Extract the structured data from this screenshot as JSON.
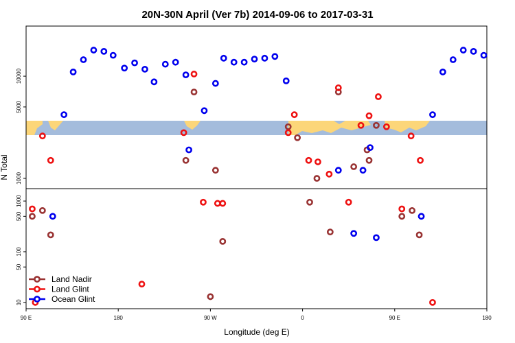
{
  "chart_data": {
    "type": "scatter",
    "title": "20N-30N April (Ver 7b)   2014-09-06 to 2017-03-31",
    "xlabel": "Longitude (deg E)",
    "ylabel": "N Total",
    "x_ticks": [
      {
        "value": 90,
        "label": "90 E"
      },
      {
        "value": 180,
        "label": "180"
      },
      {
        "value": 270,
        "label": "90 W"
      },
      {
        "value": 360,
        "label": "0"
      },
      {
        "value": 450,
        "label": "90 E"
      },
      {
        "value": 540,
        "label": "180"
      }
    ],
    "xlim": [
      90,
      540
    ],
    "upper_panel": {
      "scale": "log",
      "ylim": [
        1000,
        30000
      ],
      "y_ticks": [
        {
          "value": 1000,
          "label": "1000"
        },
        {
          "value": 5000,
          "label": "5000"
        },
        {
          "value": 10000,
          "label": "10000"
        }
      ]
    },
    "lower_panel": {
      "scale": "log",
      "ylim": [
        8,
        1600
      ],
      "y_ticks": [
        {
          "value": 10,
          "label": "10"
        },
        {
          "value": 50,
          "label": "50"
        },
        {
          "value": 100,
          "label": "100"
        },
        {
          "value": 500,
          "label": "500"
        },
        {
          "value": 1000,
          "label": "1000"
        }
      ]
    },
    "map_band": {
      "land_color": "#fcd679",
      "ocean_color": "#a4bcdc"
    },
    "series": [
      {
        "name": "Land Nadir",
        "color": "#993333",
        "points": [
          [
            96,
            500
          ],
          [
            106,
            650
          ],
          [
            114,
            215
          ],
          [
            246,
            1500
          ],
          [
            254,
            7000
          ],
          [
            270,
            13
          ],
          [
            275,
            1200
          ],
          [
            282,
            160
          ],
          [
            346,
            3200
          ],
          [
            355,
            2500
          ],
          [
            367,
            950
          ],
          [
            374,
            1000
          ],
          [
            387,
            245
          ],
          [
            395,
            7000
          ],
          [
            410,
            1300
          ],
          [
            423,
            1900
          ],
          [
            425,
            1500
          ],
          [
            432,
            3300
          ],
          [
            457,
            500
          ],
          [
            467,
            650
          ],
          [
            474,
            215
          ]
        ]
      },
      {
        "name": "Land Glint",
        "color": "#ee1111",
        "points": [
          [
            96,
            700
          ],
          [
            106,
            2600
          ],
          [
            114,
            1500
          ],
          [
            99,
            10
          ],
          [
            203,
            23
          ],
          [
            244,
            2800
          ],
          [
            254,
            10500
          ],
          [
            263,
            950
          ],
          [
            277,
            900
          ],
          [
            282,
            900
          ],
          [
            346,
            2800
          ],
          [
            352,
            4200
          ],
          [
            366,
            1500
          ],
          [
            375,
            1450
          ],
          [
            386,
            1100
          ],
          [
            395,
            7700
          ],
          [
            405,
            950
          ],
          [
            417,
            3300
          ],
          [
            425,
            4100
          ],
          [
            434,
            6300
          ],
          [
            442,
            3200
          ],
          [
            457,
            700
          ],
          [
            466,
            2600
          ],
          [
            475,
            1500
          ],
          [
            487,
            10
          ]
        ]
      },
      {
        "name": "Ocean Glint",
        "color": "#0000ee",
        "points": [
          [
            116,
            500
          ],
          [
            127,
            4200
          ],
          [
            136,
            11000
          ],
          [
            146,
            14500
          ],
          [
            156,
            18000
          ],
          [
            166,
            17500
          ],
          [
            175,
            16000
          ],
          [
            186,
            12000
          ],
          [
            196,
            13500
          ],
          [
            206,
            11700
          ],
          [
            215,
            8800
          ],
          [
            226,
            13100
          ],
          [
            236,
            13700
          ],
          [
            246,
            10300
          ],
          [
            249,
            1900
          ],
          [
            264,
            4600
          ],
          [
            275,
            8500
          ],
          [
            283,
            15000
          ],
          [
            293,
            13700
          ],
          [
            303,
            13700
          ],
          [
            313,
            14700
          ],
          [
            323,
            15000
          ],
          [
            333,
            15600
          ],
          [
            344,
            9000
          ],
          [
            395,
            1200
          ],
          [
            410,
            230
          ],
          [
            419,
            1200
          ],
          [
            426,
            2000
          ],
          [
            432,
            190
          ],
          [
            476,
            500
          ],
          [
            487,
            4200
          ],
          [
            497,
            11000
          ],
          [
            507,
            14500
          ],
          [
            517,
            18000
          ],
          [
            527,
            17500
          ],
          [
            537,
            16000
          ]
        ]
      }
    ],
    "legend": {
      "position": "bottom-left",
      "entries": [
        "Land Nadir",
        "Land Glint",
        "Ocean Glint"
      ]
    }
  }
}
